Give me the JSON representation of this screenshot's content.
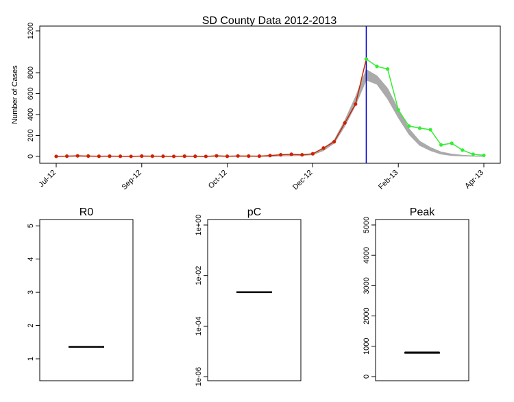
{
  "chart_data": [
    {
      "type": "line",
      "title": "SD County Data 2012-2013",
      "y_label": "Number of Cases",
      "categories": [
        "Jul-12",
        null,
        null,
        null,
        null,
        null,
        null,
        null,
        "Sep-12",
        null,
        null,
        null,
        null,
        null,
        null,
        null,
        "Oct-12",
        null,
        null,
        null,
        null,
        null,
        null,
        null,
        "Dec-12",
        null,
        null,
        null,
        null,
        null,
        null,
        null,
        "Feb-13",
        null,
        null,
        null,
        null,
        null,
        null,
        null,
        "Apr-13"
      ],
      "series": [
        {
          "color": "#cc2200",
          "values": [
            0,
            2,
            5,
            3,
            1,
            2,
            1,
            0,
            3,
            2,
            1,
            0,
            2,
            1,
            0,
            5,
            1,
            4,
            3,
            2,
            8,
            15,
            20,
            15,
            25,
            80,
            140,
            320,
            500,
            930,
            null,
            null,
            null,
            null,
            null,
            null,
            null,
            null,
            null,
            null,
            null
          ]
        },
        {
          "color": "#33ee33",
          "values": [
            null,
            null,
            null,
            null,
            null,
            null,
            null,
            null,
            null,
            null,
            null,
            null,
            null,
            null,
            null,
            null,
            null,
            null,
            null,
            null,
            null,
            null,
            null,
            null,
            null,
            null,
            null,
            null,
            null,
            930,
            860,
            835,
            445,
            290,
            270,
            255,
            110,
            125,
            60,
            20,
            10
          ]
        }
      ],
      "band": {
        "color": "#aaaaaa",
        "lower": [
          0,
          0,
          0,
          0,
          0,
          0,
          0,
          0,
          0,
          0,
          0,
          0,
          0,
          0,
          0,
          0,
          0,
          0,
          0,
          0,
          0,
          3,
          5,
          8,
          15,
          55,
          125,
          290,
          490,
          730,
          690,
          550,
          370,
          210,
          105,
          55,
          22,
          8,
          4,
          1,
          0
        ],
        "upper": [
          0,
          0,
          0,
          0,
          0,
          0,
          0,
          0,
          0,
          0,
          0,
          0,
          0,
          0,
          0,
          0,
          0,
          0,
          0,
          0,
          1,
          6,
          10,
          14,
          25,
          75,
          155,
          345,
          570,
          830,
          770,
          650,
          450,
          265,
          145,
          85,
          42,
          22,
          11,
          5,
          3
        ]
      },
      "vline_index": 29,
      "vline_color": "#0000cc",
      "ylim": [
        -66,
        1246
      ],
      "yticks": [
        0,
        200,
        400,
        600,
        800,
        1200
      ]
    },
    {
      "type": "box",
      "title": "R0",
      "median": 1.36,
      "q1": 1.35,
      "q3": 1.37,
      "ylim": [
        0.34,
        5.19
      ],
      "yticks": [
        1,
        2,
        3,
        4,
        5
      ]
    },
    {
      "type": "box",
      "title": "pC",
      "log": true,
      "median": 0.0022,
      "q1": 0.0021,
      "q3": 0.0023,
      "ylim": [
        6.9e-07,
        1.65
      ],
      "yticks": [
        {
          "value": 1,
          "label": "1e+00"
        },
        {
          "value": 0.01,
          "label": "1e-02"
        },
        {
          "value": 0.0001,
          "label": "1e-04"
        },
        {
          "value": 1e-06,
          "label": "1e-06"
        }
      ]
    },
    {
      "type": "box",
      "title": "Peak",
      "median": 790,
      "q1": 760,
      "q3": 820,
      "ylim": [
        -136,
        5180
      ],
      "yticks": [
        0,
        1000,
        2000,
        3000,
        4000,
        5000
      ]
    }
  ]
}
